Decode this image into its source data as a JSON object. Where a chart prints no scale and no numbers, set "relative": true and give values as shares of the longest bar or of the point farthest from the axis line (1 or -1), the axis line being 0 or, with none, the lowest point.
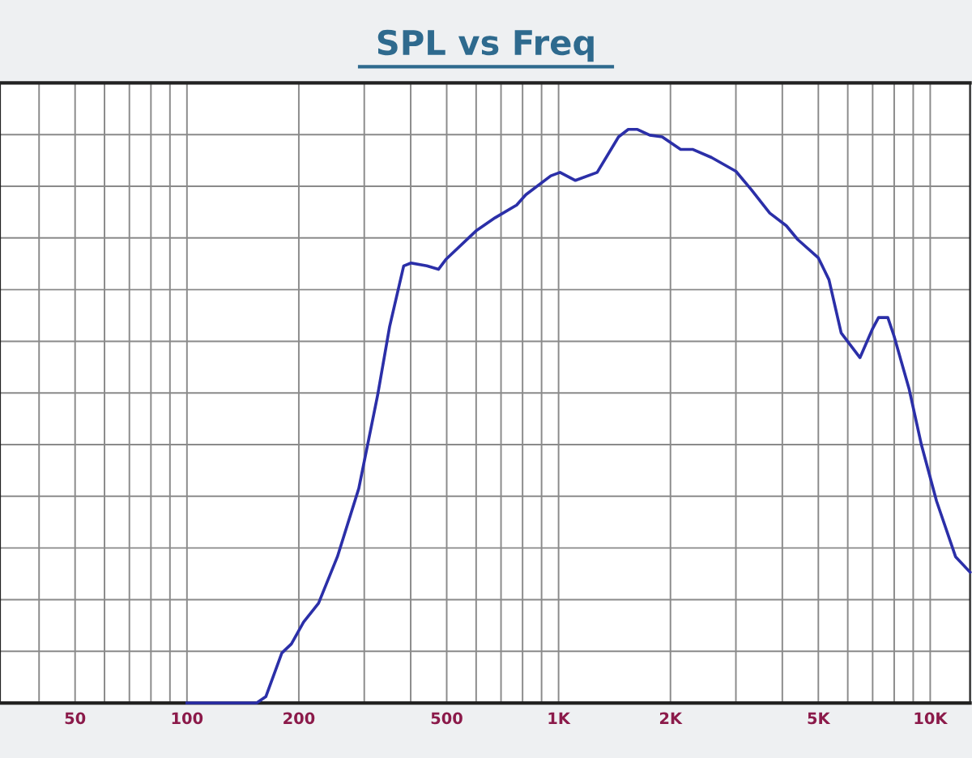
{
  "chart_data": {
    "type": "line",
    "title": "SPL vs Freq",
    "relative": true,
    "log": "x",
    "xlim": [
      31.4,
      12800
    ],
    "xticks": [
      50,
      100,
      200,
      500,
      {
        "value": 1000,
        "label": "1K"
      },
      {
        "value": 2000,
        "label": "2K"
      },
      {
        "value": 5000,
        "label": "5K"
      },
      {
        "value": 10000,
        "label": "10K"
      }
    ],
    "x": [
      100,
      154,
      163,
      180,
      191,
      206,
      226,
      254,
      290,
      326,
      351,
      383,
      401,
      442,
      475,
      497,
      602,
      675,
      771,
      816,
      953,
      1009,
      1110,
      1270,
      1450,
      1540,
      1630,
      1760,
      1900,
      2130,
      2300,
      2580,
      3000,
      3300,
      3700,
      4100,
      4400,
      5000,
      5340,
      5760,
      6470,
      6980,
      7260,
      7690,
      7990,
      8770,
      9470,
      10400,
      11700,
      12800
    ],
    "series": [
      {
        "color": "#2b2fa8",
        "values": [
          0,
          0,
          0.011,
          0.087,
          0.103,
          0.141,
          0.174,
          0.255,
          0.374,
          0.537,
          0.656,
          0.762,
          0.767,
          0.762,
          0.756,
          0.773,
          0.824,
          0.846,
          0.868,
          0.886,
          0.919,
          0.925,
          0.911,
          0.925,
          0.987,
          1.0,
          1.0,
          0.99,
          0.987,
          0.965,
          0.965,
          0.951,
          0.927,
          0.895,
          0.854,
          0.832,
          0.808,
          0.776,
          0.738,
          0.645,
          0.602,
          0.651,
          0.672,
          0.672,
          0.64,
          0.548,
          0.45,
          0.352,
          0.255,
          0.228
        ]
      }
    ],
    "grid": true,
    "marker": "none",
    "line_style": "solid",
    "tick_labels": "x"
  }
}
